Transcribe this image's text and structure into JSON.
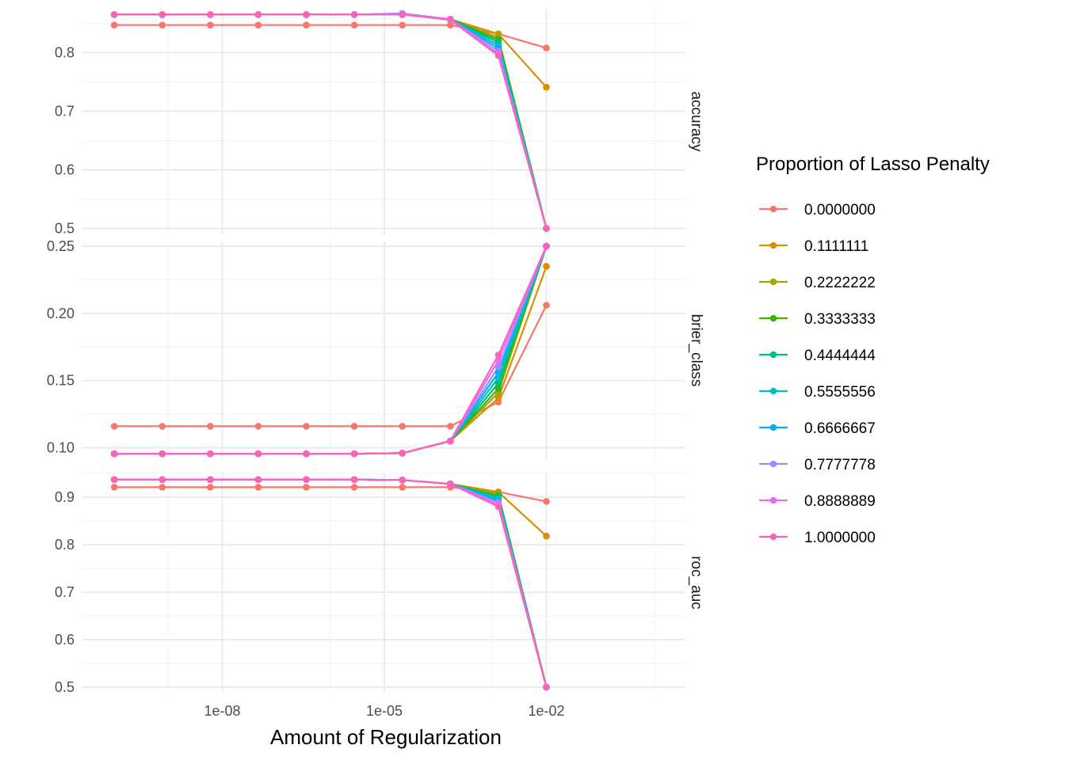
{
  "chart_data": {
    "type": "line",
    "title": "",
    "xlabel": "Amount of Regularization",
    "x_scale": "log10",
    "x": [
      1e-10,
      7.742637e-10,
      5.994843e-09,
      4.641589e-08,
      3.593814e-07,
      2.782559e-06,
      2.154435e-05,
      0.0001668101,
      0.00129155,
      0.01
    ],
    "x_ticks": [
      1e-08,
      1e-05,
      0.01
    ],
    "x_tick_labels": [
      "1e-08",
      "1e-05",
      "1e-02"
    ],
    "legend_title": "Proportion of Lasso Penalty",
    "legend_position": "right",
    "grid": true,
    "facets": [
      {
        "label": "accuracy",
        "ylim": [
          0.49,
          0.875
        ],
        "y_ticks": [
          0.5,
          0.6,
          0.7,
          0.8
        ],
        "y_tick_labels": [
          "0.5",
          "0.6",
          "0.7",
          "0.8"
        ],
        "series": [
          {
            "name": "0.0000000",
            "values": [
              0.847,
              0.847,
              0.847,
              0.847,
              0.847,
              0.847,
              0.847,
              0.847,
              0.832,
              0.808
            ]
          },
          {
            "name": "0.1111111",
            "values": [
              0.865,
              0.865,
              0.865,
              0.865,
              0.865,
              0.865,
              0.866,
              0.857,
              0.832,
              0.741
            ]
          },
          {
            "name": "0.2222222",
            "values": [
              0.865,
              0.865,
              0.865,
              0.865,
              0.865,
              0.865,
              0.866,
              0.857,
              0.826,
              0.5
            ]
          },
          {
            "name": "0.3333333",
            "values": [
              0.865,
              0.865,
              0.865,
              0.865,
              0.865,
              0.865,
              0.866,
              0.857,
              0.822,
              0.5
            ]
          },
          {
            "name": "0.4444444",
            "values": [
              0.865,
              0.865,
              0.865,
              0.865,
              0.865,
              0.865,
              0.866,
              0.857,
              0.818,
              0.5
            ]
          },
          {
            "name": "0.5555556",
            "values": [
              0.865,
              0.865,
              0.865,
              0.865,
              0.865,
              0.865,
              0.866,
              0.857,
              0.813,
              0.5
            ]
          },
          {
            "name": "0.6666667",
            "values": [
              0.865,
              0.865,
              0.865,
              0.865,
              0.865,
              0.865,
              0.866,
              0.857,
              0.808,
              0.5
            ]
          },
          {
            "name": "0.7777778",
            "values": [
              0.865,
              0.865,
              0.865,
              0.865,
              0.865,
              0.865,
              0.867,
              0.857,
              0.803,
              0.5
            ]
          },
          {
            "name": "0.8888889",
            "values": [
              0.865,
              0.865,
              0.865,
              0.865,
              0.865,
              0.865,
              0.865,
              0.857,
              0.798,
              0.5
            ]
          },
          {
            "name": "1.0000000",
            "values": [
              0.865,
              0.865,
              0.865,
              0.865,
              0.865,
              0.865,
              0.865,
              0.856,
              0.795,
              0.5
            ]
          }
        ]
      },
      {
        "label": "brier_class",
        "ylim": [
          0.0915,
          0.2535
        ],
        "y_ticks": [
          0.1,
          0.15,
          0.2,
          0.25
        ],
        "y_tick_labels": [
          "0.10",
          "0.15",
          "0.20",
          "0.25"
        ],
        "series": [
          {
            "name": "0.0000000",
            "values": [
              0.116,
              0.116,
              0.116,
              0.116,
              0.116,
              0.116,
              0.116,
              0.116,
              0.134,
              0.206
            ]
          },
          {
            "name": "0.1111111",
            "values": [
              0.0955,
              0.0955,
              0.0955,
              0.0955,
              0.0955,
              0.0955,
              0.096,
              0.105,
              0.137,
              0.235
            ]
          },
          {
            "name": "0.2222222",
            "values": [
              0.0955,
              0.0955,
              0.0955,
              0.0955,
              0.0955,
              0.0955,
              0.096,
              0.105,
              0.141,
              0.25
            ]
          },
          {
            "name": "0.3333333",
            "values": [
              0.0955,
              0.0955,
              0.0955,
              0.0955,
              0.0955,
              0.0955,
              0.096,
              0.105,
              0.144,
              0.25
            ]
          },
          {
            "name": "0.4444444",
            "values": [
              0.0955,
              0.0955,
              0.0955,
              0.0955,
              0.0955,
              0.0955,
              0.096,
              0.105,
              0.148,
              0.25
            ]
          },
          {
            "name": "0.5555556",
            "values": [
              0.0955,
              0.0955,
              0.0955,
              0.0955,
              0.0955,
              0.0955,
              0.096,
              0.105,
              0.152,
              0.25
            ]
          },
          {
            "name": "0.6666667",
            "values": [
              0.0955,
              0.0955,
              0.0955,
              0.0955,
              0.0955,
              0.0955,
              0.096,
              0.105,
              0.156,
              0.25
            ]
          },
          {
            "name": "0.7777778",
            "values": [
              0.0955,
              0.0955,
              0.0955,
              0.0955,
              0.0955,
              0.0955,
              0.096,
              0.105,
              0.16,
              0.25
            ]
          },
          {
            "name": "0.8888889",
            "values": [
              0.0955,
              0.0955,
              0.0955,
              0.0955,
              0.0955,
              0.0955,
              0.096,
              0.105,
              0.165,
              0.25
            ]
          },
          {
            "name": "1.0000000",
            "values": [
              0.0955,
              0.0955,
              0.0955,
              0.0955,
              0.0955,
              0.0955,
              0.096,
              0.105,
              0.169,
              0.25
            ]
          }
        ]
      },
      {
        "label": "roc_auc",
        "ylim": [
          0.49,
          0.95
        ],
        "y_ticks": [
          0.5,
          0.6,
          0.7,
          0.8,
          0.9
        ],
        "y_tick_labels": [
          "0.5",
          "0.6",
          "0.7",
          "0.8",
          "0.9"
        ],
        "series": [
          {
            "name": "0.0000000",
            "values": [
              0.921,
              0.921,
              0.921,
              0.921,
              0.921,
              0.921,
              0.921,
              0.921,
              0.911,
              0.891
            ]
          },
          {
            "name": "0.1111111",
            "values": [
              0.937,
              0.937,
              0.937,
              0.937,
              0.937,
              0.937,
              0.936,
              0.928,
              0.911,
              0.818
            ]
          },
          {
            "name": "0.2222222",
            "values": [
              0.937,
              0.937,
              0.937,
              0.937,
              0.937,
              0.937,
              0.936,
              0.928,
              0.907,
              0.5
            ]
          },
          {
            "name": "0.3333333",
            "values": [
              0.937,
              0.937,
              0.937,
              0.937,
              0.937,
              0.937,
              0.936,
              0.928,
              0.903,
              0.5
            ]
          },
          {
            "name": "0.4444444",
            "values": [
              0.937,
              0.937,
              0.937,
              0.937,
              0.937,
              0.937,
              0.936,
              0.928,
              0.9,
              0.5
            ]
          },
          {
            "name": "0.5555556",
            "values": [
              0.937,
              0.937,
              0.937,
              0.937,
              0.937,
              0.937,
              0.936,
              0.928,
              0.897,
              0.5
            ]
          },
          {
            "name": "0.6666667",
            "values": [
              0.937,
              0.937,
              0.937,
              0.937,
              0.937,
              0.937,
              0.936,
              0.928,
              0.893,
              0.5
            ]
          },
          {
            "name": "0.7777778",
            "values": [
              0.937,
              0.937,
              0.937,
              0.937,
              0.937,
              0.937,
              0.936,
              0.928,
              0.889,
              0.5
            ]
          },
          {
            "name": "0.8888889",
            "values": [
              0.937,
              0.937,
              0.937,
              0.937,
              0.937,
              0.937,
              0.936,
              0.928,
              0.884,
              0.5
            ]
          },
          {
            "name": "1.0000000",
            "values": [
              0.937,
              0.937,
              0.937,
              0.937,
              0.937,
              0.937,
              0.936,
              0.928,
              0.88,
              0.5
            ]
          }
        ]
      }
    ],
    "series_colors": [
      "#F8766D",
      "#D89000",
      "#A3A500",
      "#39B600",
      "#00BF7D",
      "#00BFC4",
      "#00B0F6",
      "#9590FF",
      "#E76BF3",
      "#FF62BC"
    ]
  }
}
